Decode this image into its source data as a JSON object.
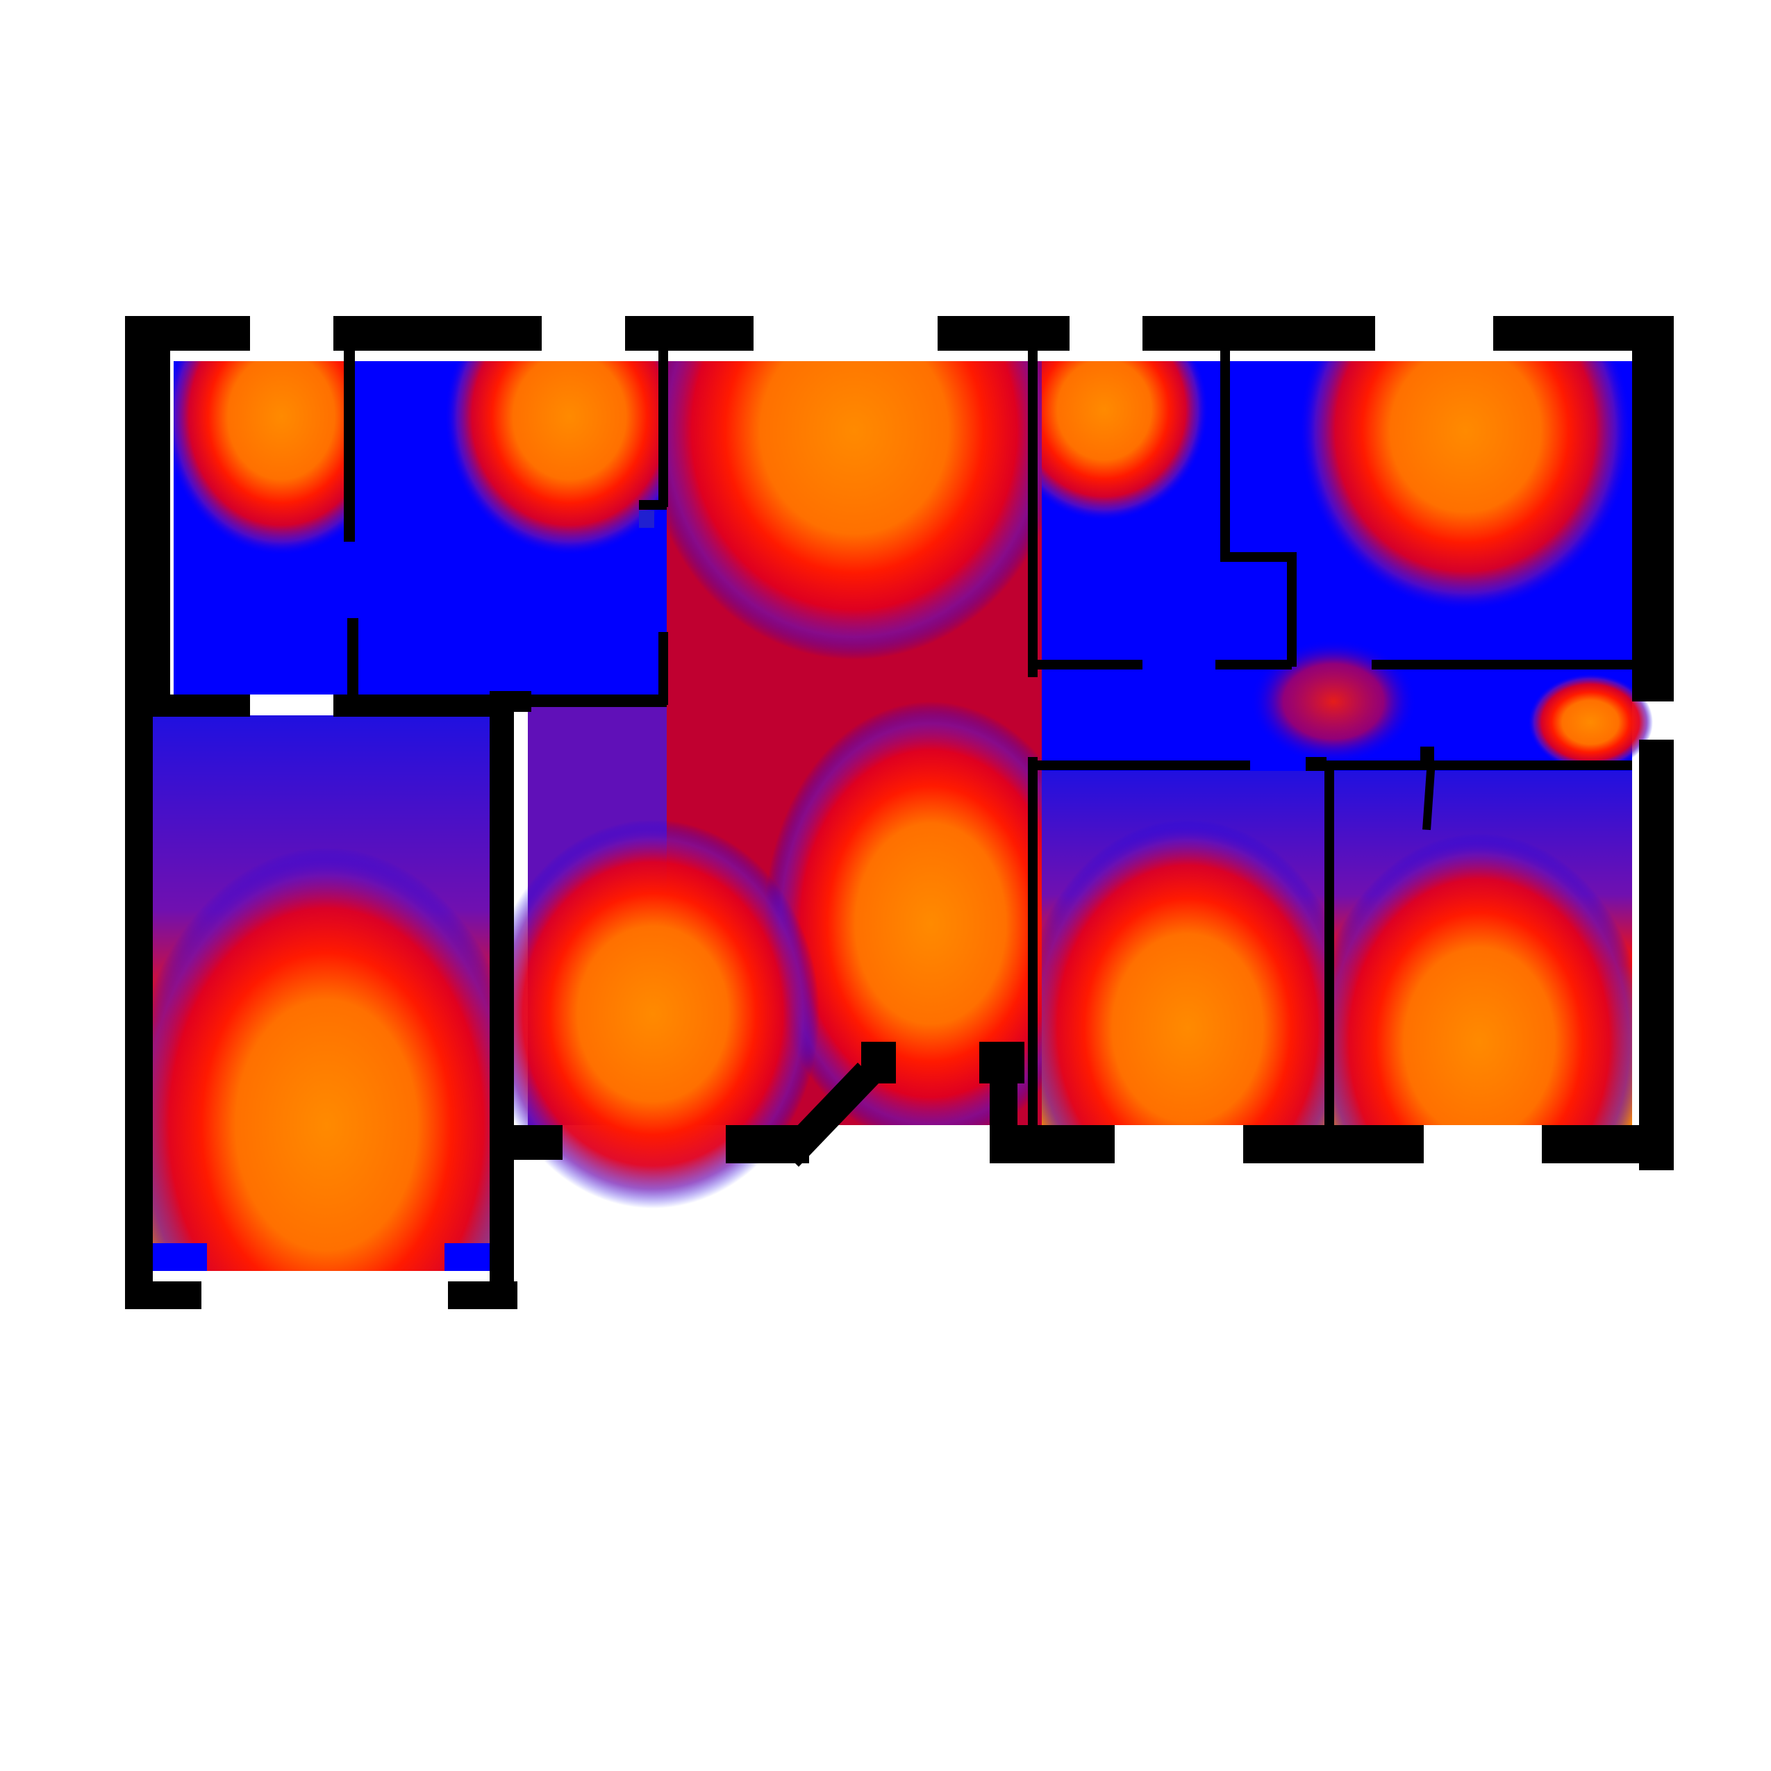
{
  "diagram": {
    "type": "floor-plan-heatmap",
    "colors": {
      "background": "#ffffff",
      "wall": "#000000",
      "heat_low": "#0000ff",
      "heat_mid": "#ff0000",
      "heat_high": "#ff8800"
    },
    "labels": []
  }
}
